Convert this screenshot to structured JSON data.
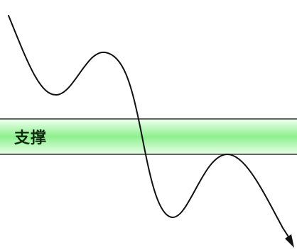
{
  "diagram": {
    "band": {
      "label": "支撑",
      "color_top": "#f2fff2",
      "color_mid": "#8ef08e",
      "color_bottom": "#e8ffe8",
      "border_color": "#222222",
      "label_color": "#0f2a0f"
    },
    "curve": {
      "color": "#111111",
      "direction": "down",
      "arrowhead": "arrow-down-right-icon"
    }
  }
}
